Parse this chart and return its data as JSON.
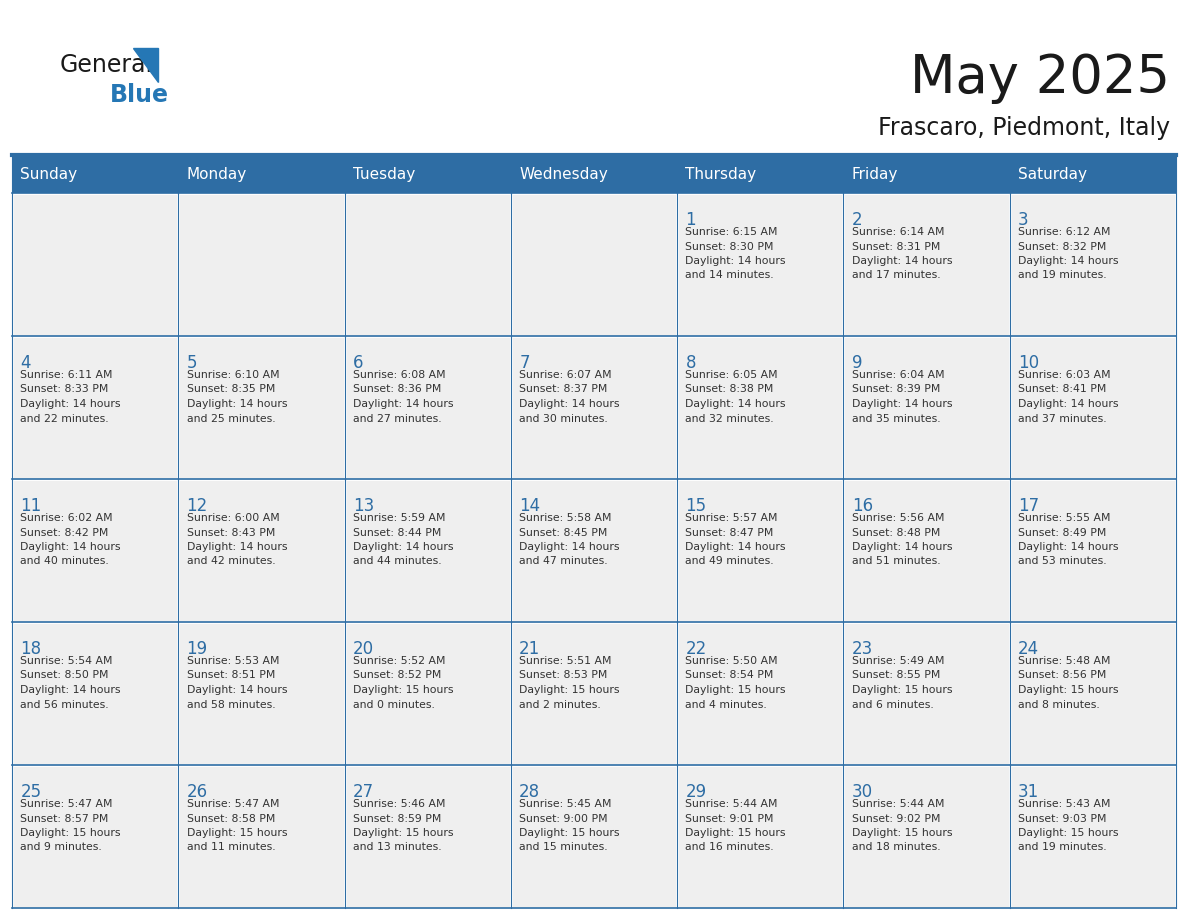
{
  "title": "May 2025",
  "subtitle": "Frascaro, Piedmont, Italy",
  "header_bg": "#2E6DA4",
  "header_text_color": "#FFFFFF",
  "cell_bg_light": "#EFEFEF",
  "text_color_dark": "#333333",
  "text_color_blue": "#2E6DA4",
  "line_color": "#2E6DA4",
  "days_of_week": [
    "Sunday",
    "Monday",
    "Tuesday",
    "Wednesday",
    "Thursday",
    "Friday",
    "Saturday"
  ],
  "weeks": [
    [
      {
        "day": "",
        "info": ""
      },
      {
        "day": "",
        "info": ""
      },
      {
        "day": "",
        "info": ""
      },
      {
        "day": "",
        "info": ""
      },
      {
        "day": "1",
        "info": "Sunrise: 6:15 AM\nSunset: 8:30 PM\nDaylight: 14 hours\nand 14 minutes."
      },
      {
        "day": "2",
        "info": "Sunrise: 6:14 AM\nSunset: 8:31 PM\nDaylight: 14 hours\nand 17 minutes."
      },
      {
        "day": "3",
        "info": "Sunrise: 6:12 AM\nSunset: 8:32 PM\nDaylight: 14 hours\nand 19 minutes."
      }
    ],
    [
      {
        "day": "4",
        "info": "Sunrise: 6:11 AM\nSunset: 8:33 PM\nDaylight: 14 hours\nand 22 minutes."
      },
      {
        "day": "5",
        "info": "Sunrise: 6:10 AM\nSunset: 8:35 PM\nDaylight: 14 hours\nand 25 minutes."
      },
      {
        "day": "6",
        "info": "Sunrise: 6:08 AM\nSunset: 8:36 PM\nDaylight: 14 hours\nand 27 minutes."
      },
      {
        "day": "7",
        "info": "Sunrise: 6:07 AM\nSunset: 8:37 PM\nDaylight: 14 hours\nand 30 minutes."
      },
      {
        "day": "8",
        "info": "Sunrise: 6:05 AM\nSunset: 8:38 PM\nDaylight: 14 hours\nand 32 minutes."
      },
      {
        "day": "9",
        "info": "Sunrise: 6:04 AM\nSunset: 8:39 PM\nDaylight: 14 hours\nand 35 minutes."
      },
      {
        "day": "10",
        "info": "Sunrise: 6:03 AM\nSunset: 8:41 PM\nDaylight: 14 hours\nand 37 minutes."
      }
    ],
    [
      {
        "day": "11",
        "info": "Sunrise: 6:02 AM\nSunset: 8:42 PM\nDaylight: 14 hours\nand 40 minutes."
      },
      {
        "day": "12",
        "info": "Sunrise: 6:00 AM\nSunset: 8:43 PM\nDaylight: 14 hours\nand 42 minutes."
      },
      {
        "day": "13",
        "info": "Sunrise: 5:59 AM\nSunset: 8:44 PM\nDaylight: 14 hours\nand 44 minutes."
      },
      {
        "day": "14",
        "info": "Sunrise: 5:58 AM\nSunset: 8:45 PM\nDaylight: 14 hours\nand 47 minutes."
      },
      {
        "day": "15",
        "info": "Sunrise: 5:57 AM\nSunset: 8:47 PM\nDaylight: 14 hours\nand 49 minutes."
      },
      {
        "day": "16",
        "info": "Sunrise: 5:56 AM\nSunset: 8:48 PM\nDaylight: 14 hours\nand 51 minutes."
      },
      {
        "day": "17",
        "info": "Sunrise: 5:55 AM\nSunset: 8:49 PM\nDaylight: 14 hours\nand 53 minutes."
      }
    ],
    [
      {
        "day": "18",
        "info": "Sunrise: 5:54 AM\nSunset: 8:50 PM\nDaylight: 14 hours\nand 56 minutes."
      },
      {
        "day": "19",
        "info": "Sunrise: 5:53 AM\nSunset: 8:51 PM\nDaylight: 14 hours\nand 58 minutes."
      },
      {
        "day": "20",
        "info": "Sunrise: 5:52 AM\nSunset: 8:52 PM\nDaylight: 15 hours\nand 0 minutes."
      },
      {
        "day": "21",
        "info": "Sunrise: 5:51 AM\nSunset: 8:53 PM\nDaylight: 15 hours\nand 2 minutes."
      },
      {
        "day": "22",
        "info": "Sunrise: 5:50 AM\nSunset: 8:54 PM\nDaylight: 15 hours\nand 4 minutes."
      },
      {
        "day": "23",
        "info": "Sunrise: 5:49 AM\nSunset: 8:55 PM\nDaylight: 15 hours\nand 6 minutes."
      },
      {
        "day": "24",
        "info": "Sunrise: 5:48 AM\nSunset: 8:56 PM\nDaylight: 15 hours\nand 8 minutes."
      }
    ],
    [
      {
        "day": "25",
        "info": "Sunrise: 5:47 AM\nSunset: 8:57 PM\nDaylight: 15 hours\nand 9 minutes."
      },
      {
        "day": "26",
        "info": "Sunrise: 5:47 AM\nSunset: 8:58 PM\nDaylight: 15 hours\nand 11 minutes."
      },
      {
        "day": "27",
        "info": "Sunrise: 5:46 AM\nSunset: 8:59 PM\nDaylight: 15 hours\nand 13 minutes."
      },
      {
        "day": "28",
        "info": "Sunrise: 5:45 AM\nSunset: 9:00 PM\nDaylight: 15 hours\nand 15 minutes."
      },
      {
        "day": "29",
        "info": "Sunrise: 5:44 AM\nSunset: 9:01 PM\nDaylight: 15 hours\nand 16 minutes."
      },
      {
        "day": "30",
        "info": "Sunrise: 5:44 AM\nSunset: 9:02 PM\nDaylight: 15 hours\nand 18 minutes."
      },
      {
        "day": "31",
        "info": "Sunrise: 5:43 AM\nSunset: 9:03 PM\nDaylight: 15 hours\nand 19 minutes."
      }
    ]
  ],
  "fig_width": 11.88,
  "fig_height": 9.18,
  "dpi": 100
}
